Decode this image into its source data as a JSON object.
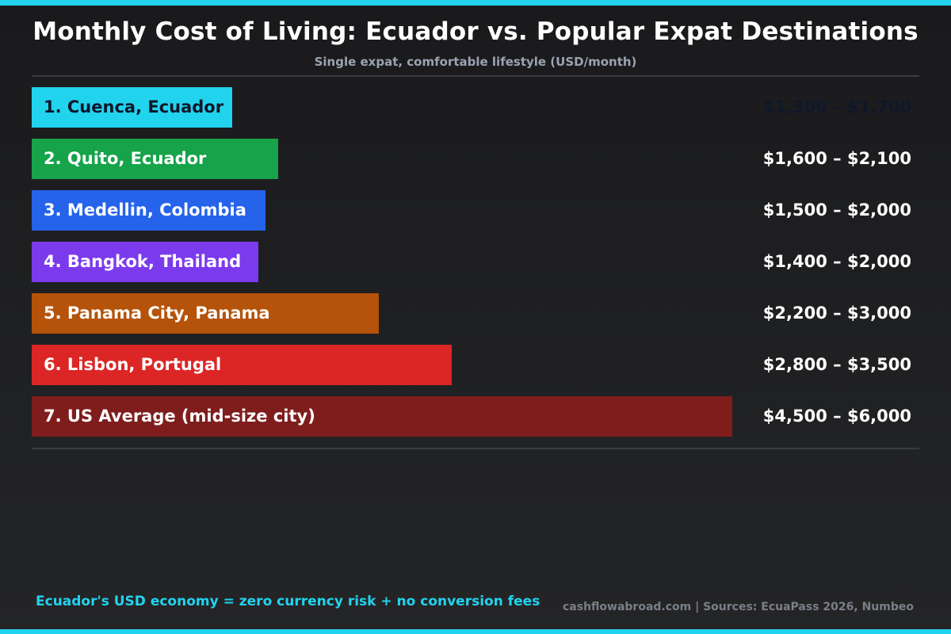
{
  "accent_color": "#22d3ee",
  "title": "Monthly Cost of Living: Ecuador vs. Popular Expat Destinations",
  "subtitle": "Single expat, comfortable lifestyle (USD/month)",
  "footnote": "Ecuador's USD economy = zero currency risk + no conversion fees",
  "source": "cashflowabroad.com | Sources: EcuaPass 2026, Numbeo",
  "chart_data": {
    "type": "bar",
    "orientation": "horizontal",
    "title": "Monthly Cost of Living: Ecuador vs. Popular Expat Destinations",
    "subtitle": "Single expat, comfortable lifestyle (USD/month)",
    "xlim": [
      0,
      6000
    ],
    "grid": false,
    "bars": [
      {
        "label": "1. Cuenca, Ecuador",
        "range_text": "$1,300 – $1,700",
        "low": 1300,
        "high": 1700,
        "color": "#22d3ee",
        "text_color": "#0f172a"
      },
      {
        "label": "2. Quito, Ecuador",
        "range_text": "$1,600 – $2,100",
        "low": 1600,
        "high": 2100,
        "color": "#16a34a",
        "text_color": "#ffffff"
      },
      {
        "label": "3. Medellin, Colombia",
        "range_text": "$1,500 – $2,000",
        "low": 1500,
        "high": 2000,
        "color": "#2563eb",
        "text_color": "#ffffff"
      },
      {
        "label": "4. Bangkok, Thailand",
        "range_text": "$1,400 – $2,000",
        "low": 1400,
        "high": 2000,
        "color": "#7c3aed",
        "text_color": "#ffffff"
      },
      {
        "label": "5. Panama City, Panama",
        "range_text": "$2,200 – $3,000",
        "low": 2200,
        "high": 3000,
        "color": "#b45309",
        "text_color": "#ffffff"
      },
      {
        "label": "6. Lisbon, Portugal",
        "range_text": "$2,800 – $3,500",
        "low": 2800,
        "high": 3500,
        "color": "#dc2626",
        "text_color": "#ffffff"
      },
      {
        "label": "7. US Average (mid-size city)",
        "range_text": "$4,500 – $6,000",
        "low": 4500,
        "high": 6000,
        "color": "#7f1d1d",
        "text_color": "#ffffff"
      }
    ]
  }
}
